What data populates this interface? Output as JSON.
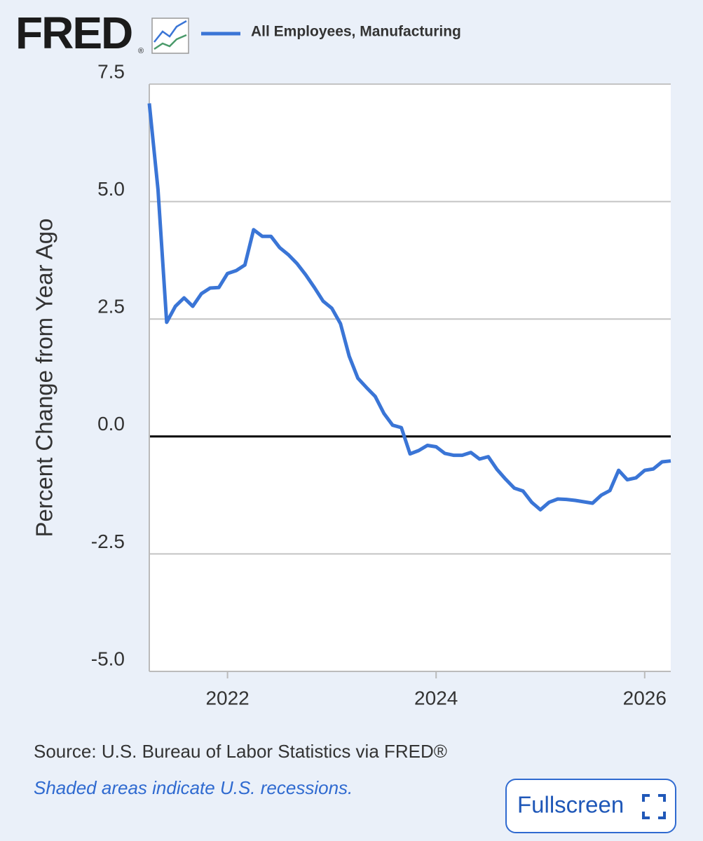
{
  "logo": "FRED",
  "logo_mark": "®",
  "chart_data": {
    "type": "line",
    "y_label": "Percent Change from Year Ago",
    "x": [
      "2021-04",
      "2021-05",
      "2021-06",
      "2021-07",
      "2021-08",
      "2021-09",
      "2021-10",
      "2021-11",
      "2021-12",
      "2022-01",
      "2022-02",
      "2022-03",
      "2022-04",
      "2022-05",
      "2022-06",
      "2022-07",
      "2022-08",
      "2022-09",
      "2022-10",
      "2022-11",
      "2022-12",
      "2023-01",
      "2023-02",
      "2023-03",
      "2023-04",
      "2023-05",
      "2023-06",
      "2023-07",
      "2023-08",
      "2023-09",
      "2023-10",
      "2023-11",
      "2023-12",
      "2024-01",
      "2024-02",
      "2024-03",
      "2024-04",
      "2024-05",
      "2024-06",
      "2024-07",
      "2024-08",
      "2024-09",
      "2024-10",
      "2024-11",
      "2024-12",
      "2025-01",
      "2025-02",
      "2025-03",
      "2025-04",
      "2025-05",
      "2025-06",
      "2025-07",
      "2025-08",
      "2025-09",
      "2025-10",
      "2025-11",
      "2025-12",
      "2026-01",
      "2026-02",
      "2026-03",
      "2026-04"
    ],
    "series": [
      {
        "name": "All Employees, Manufacturing",
        "color": "#3a75d6",
        "values": [
          7.09,
          5.26,
          2.43,
          2.77,
          2.95,
          2.77,
          3.04,
          3.16,
          3.17,
          3.47,
          3.53,
          3.65,
          4.4,
          4.26,
          4.26,
          4.02,
          3.87,
          3.68,
          3.44,
          3.17,
          2.88,
          2.73,
          2.4,
          1.71,
          1.24,
          1.04,
          0.85,
          0.49,
          0.24,
          0.19,
          -0.37,
          -0.3,
          -0.19,
          -0.22,
          -0.36,
          -0.4,
          -0.4,
          -0.34,
          -0.48,
          -0.43,
          -0.7,
          -0.91,
          -1.1,
          -1.16,
          -1.4,
          -1.56,
          -1.4,
          -1.33,
          -1.34,
          -1.36,
          -1.39,
          -1.42,
          -1.25,
          -1.15,
          -0.72,
          -0.92,
          -0.88,
          -0.72,
          -0.69,
          -0.54,
          -0.52
        ]
      }
    ],
    "xlim": [
      "2021-04",
      "2026-04"
    ],
    "xticks": [
      2022,
      2024,
      2026
    ],
    "ylim": [
      -5,
      7.5
    ],
    "yticks": [
      {
        "value": -5,
        "label": "-5.0"
      },
      -2.5,
      {
        "value": 0,
        "label": "0.0"
      },
      2.5,
      {
        "value": 5,
        "label": "5.0"
      },
      7.5
    ],
    "grid": true,
    "zero_line": true
  },
  "source": "Source: U.S. Bureau of Labor Statistics via FRED®",
  "note": "Shaded areas indicate U.S. recessions.",
  "button": "Fullscreen"
}
